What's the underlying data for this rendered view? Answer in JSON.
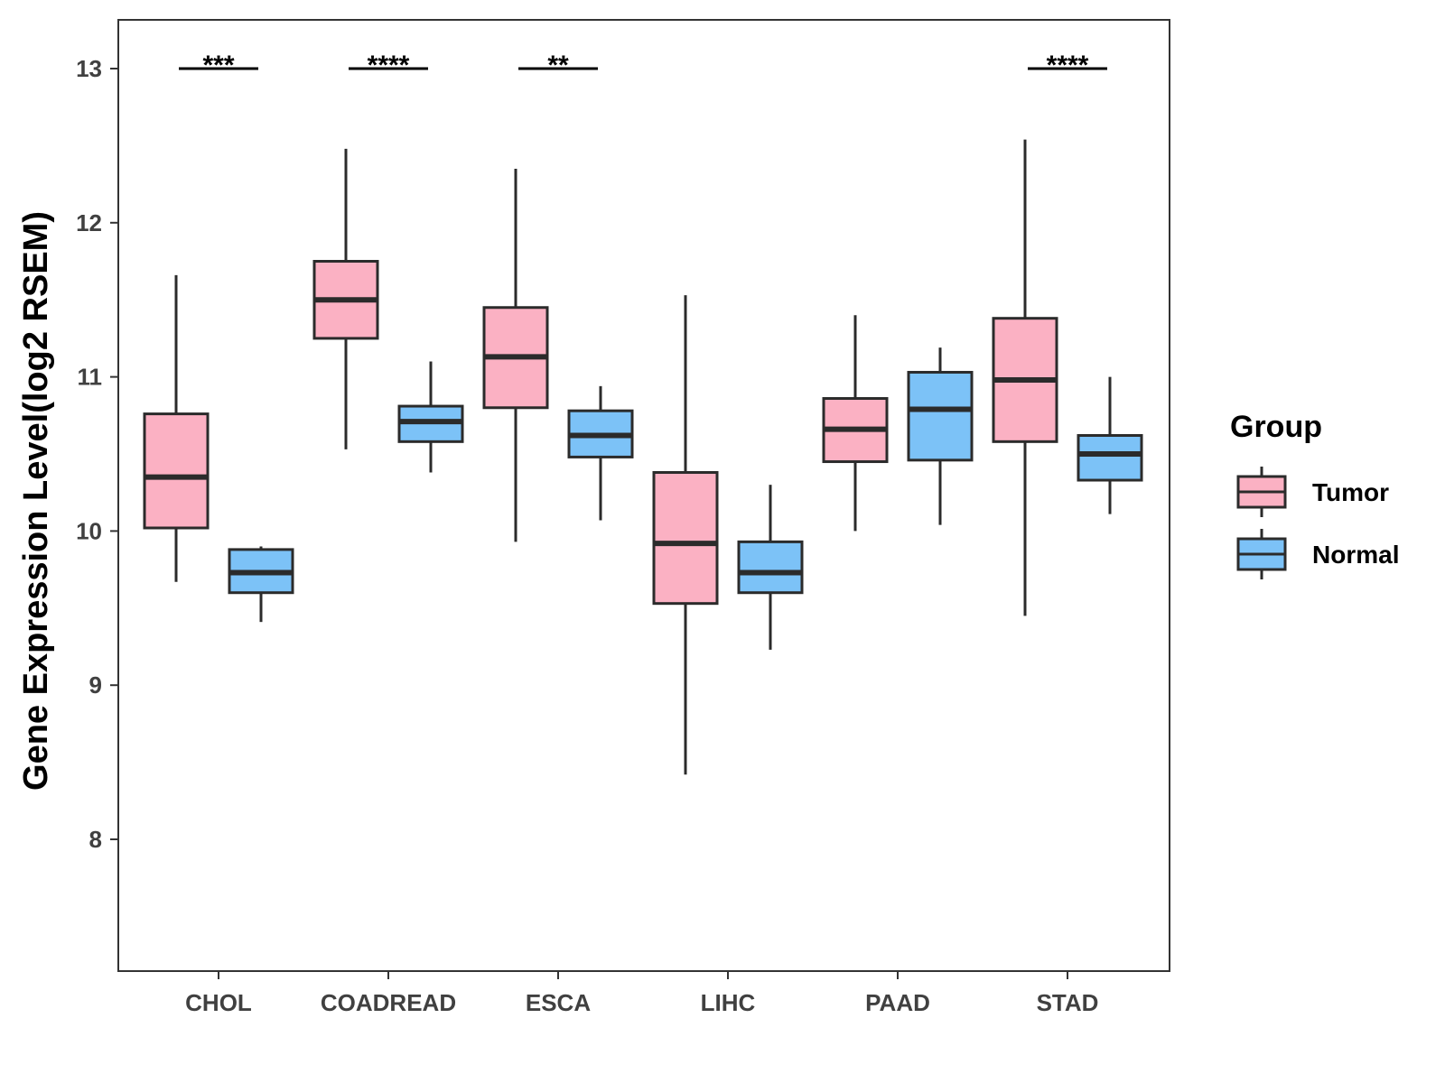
{
  "chart_data": {
    "type": "boxplot",
    "ylabel": "Gene Expression Level(log2 RSEM)",
    "xlabel": "",
    "ylim": [
      7.2,
      13.3
    ],
    "yticks": [
      8,
      9,
      10,
      11,
      12,
      13
    ],
    "categories": [
      "CHOL",
      "COADREAD",
      "ESCA",
      "LIHC",
      "PAAD",
      "STAD"
    ],
    "legend": {
      "title": "Group",
      "position": "right",
      "entries": [
        {
          "name": "Tumor",
          "color": "#FBB1C3"
        },
        {
          "name": "Normal",
          "color": "#7CC2F7"
        }
      ]
    },
    "series": [
      {
        "name": "Tumor",
        "color": "#FBB1C3",
        "boxes": [
          {
            "min": 9.67,
            "q1": 10.02,
            "median": 10.35,
            "q3": 10.76,
            "max": 11.66
          },
          {
            "min": 10.53,
            "q1": 11.25,
            "median": 11.5,
            "q3": 11.75,
            "max": 12.48
          },
          {
            "min": 9.93,
            "q1": 10.8,
            "median": 11.13,
            "q3": 11.45,
            "max": 12.35
          },
          {
            "min": 8.42,
            "q1": 9.53,
            "median": 9.92,
            "q3": 10.38,
            "max": 11.53
          },
          {
            "min": 10.0,
            "q1": 10.45,
            "median": 10.66,
            "q3": 10.86,
            "max": 11.4
          },
          {
            "min": 9.45,
            "q1": 10.58,
            "median": 10.98,
            "q3": 11.38,
            "max": 12.54
          }
        ]
      },
      {
        "name": "Normal",
        "color": "#7CC2F7",
        "boxes": [
          {
            "min": 9.41,
            "q1": 9.6,
            "median": 9.73,
            "q3": 9.88,
            "max": 9.9
          },
          {
            "min": 10.38,
            "q1": 10.58,
            "median": 10.71,
            "q3": 10.81,
            "max": 11.1
          },
          {
            "min": 10.07,
            "q1": 10.48,
            "median": 10.62,
            "q3": 10.78,
            "max": 10.94
          },
          {
            "min": 9.23,
            "q1": 9.6,
            "median": 9.73,
            "q3": 9.93,
            "max": 10.3
          },
          {
            "min": 10.04,
            "q1": 10.46,
            "median": 10.79,
            "q3": 11.03,
            "max": 11.19
          },
          {
            "min": 10.11,
            "q1": 10.33,
            "median": 10.5,
            "q3": 10.62,
            "max": 11.0
          }
        ]
      }
    ],
    "significance": [
      {
        "category": "CHOL",
        "label": "***",
        "y": 13.0
      },
      {
        "category": "COADREAD",
        "label": "****",
        "y": 13.0
      },
      {
        "category": "ESCA",
        "label": "**",
        "y": 13.0
      },
      {
        "category": "STAD",
        "label": "****",
        "y": 13.0
      }
    ]
  }
}
